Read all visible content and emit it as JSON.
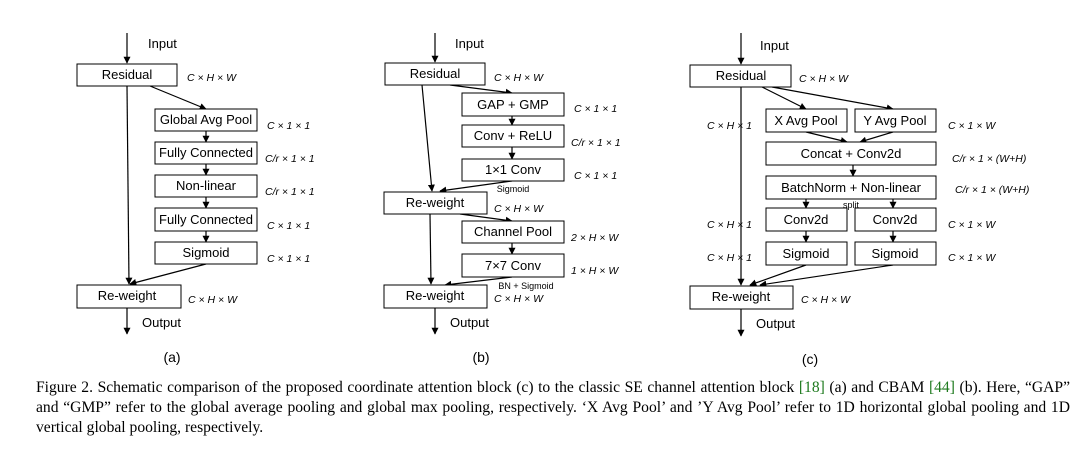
{
  "panels": {
    "a": {
      "input": "Input",
      "output": "Output",
      "tag": "(a)",
      "boxes": {
        "residual": "Residual",
        "gap": "Global Avg Pool",
        "fc1": "Fully Connected",
        "nonlinear": "Non-linear",
        "fc2": "Fully Connected",
        "sigmoid": "Sigmoid",
        "reweight": "Re-weight"
      },
      "dims": {
        "residual": "C × H × W",
        "gap": "C × 1 × 1",
        "fc1": "C/r × 1 × 1",
        "nonlinear": "C/r × 1 × 1",
        "fc2": "C × 1 × 1",
        "sigmoid": "C × 1 × 1",
        "reweight": "C × H × W"
      }
    },
    "b": {
      "input": "Input",
      "output": "Output",
      "tag": "(b)",
      "boxes": {
        "residual": "Residual",
        "pool": "GAP + GMP",
        "conv_relu": "Conv + ReLU",
        "conv1x1": "1×1 Conv",
        "reweight1": "Re-weight",
        "channel_pool": "Channel Pool",
        "conv7x7": "7×7 Conv",
        "reweight2": "Re-weight"
      },
      "notes": {
        "sigmoid": "Sigmoid",
        "bn_sigmoid": "BN + Sigmoid"
      },
      "dims": {
        "residual": "C × H × W",
        "pool": "C × 1 × 1",
        "conv_relu": "C/r × 1 × 1",
        "conv1x1": "C × 1 × 1",
        "reweight1": "C × H × W",
        "channel_pool": "2 × H × W",
        "conv7x7": "1 × H × W",
        "reweight2": "C × H × W"
      }
    },
    "c": {
      "input": "Input",
      "output": "Output",
      "tag": "(c)",
      "boxes": {
        "residual": "Residual",
        "x_pool": "X Avg Pool",
        "y_pool": "Y Avg Pool",
        "concat": "Concat + Conv2d",
        "bn": "BatchNorm + Non-linear",
        "conv_h": "Conv2d",
        "conv_w": "Conv2d",
        "sig_h": "Sigmoid",
        "sig_w": "Sigmoid",
        "reweight": "Re-weight"
      },
      "notes": {
        "split": "split"
      },
      "dims": {
        "residual": "C × H × W",
        "x_pool_left": "C × H × 1",
        "y_pool_right": "C × 1 × W",
        "concat": "C/r × 1 × (W+H)",
        "bn": "C/r × 1 × (W+H)",
        "conv_h_left": "C × H × 1",
        "conv_w_right": "C × 1 × W",
        "sig_h_left": "C × H × 1",
        "sig_w_right": "C × 1 × W",
        "reweight": "C × H × W"
      }
    }
  },
  "caption": {
    "part1": "Figure 2. Schematic comparison of the proposed coordinate attention block (c) to the classic SE channel attention block ",
    "ref1": "[18]",
    "part2": " (a) and CBAM ",
    "ref2": "[44]",
    "part3": " (b). Here, “GAP” and “GMP” refer to the global average pooling and global max pooling, respectively. ‘X Avg Pool’ and ’Y Avg Pool’ refer to 1D horizontal global pooling and 1D vertical global pooling, respectively."
  }
}
